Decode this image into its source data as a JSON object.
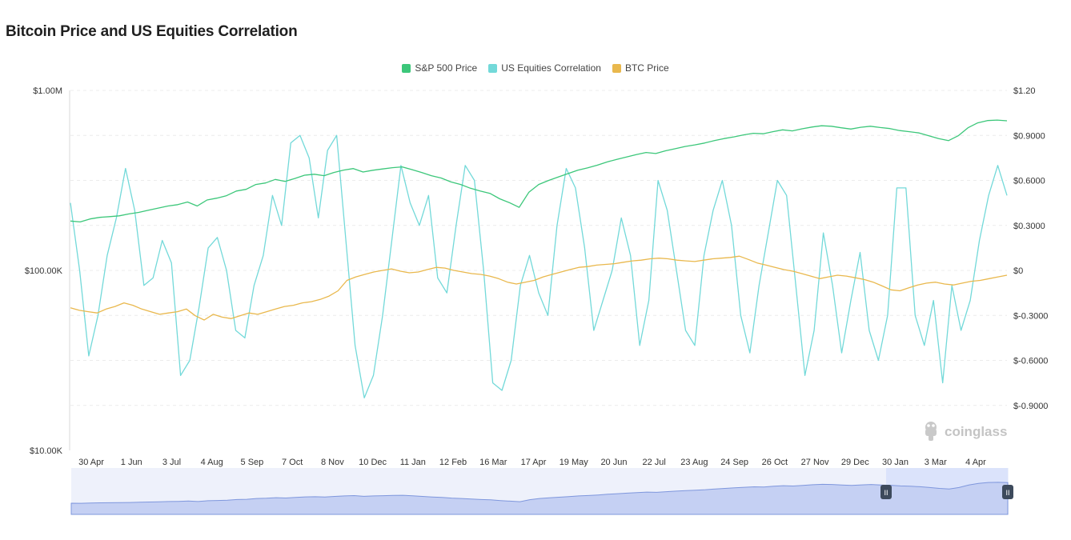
{
  "title": "Bitcoin Price and US Equities Correlation",
  "legend": [
    {
      "label": "S&P 500 Price",
      "color": "#3cc77a"
    },
    {
      "label": "US Equities Correlation",
      "color": "#73d9d9"
    },
    {
      "label": "BTC Price",
      "color": "#e9b84d"
    }
  ],
  "watermark": "coinglass",
  "chart_data": {
    "type": "line",
    "title": "Bitcoin Price and US Equities Correlation",
    "x_ticks": [
      "30 Apr",
      "1 Jun",
      "3 Jul",
      "4 Aug",
      "5 Sep",
      "7 Oct",
      "8 Nov",
      "10 Dec",
      "11 Jan",
      "12 Feb",
      "16 Mar",
      "17 Apr",
      "19 May",
      "20 Jun",
      "22 Jul",
      "23 Aug",
      "24 Sep",
      "26 Oct",
      "27 Nov",
      "29 Dec",
      "30 Jan",
      "3 Mar",
      "4 Apr"
    ],
    "y_left": {
      "scale": "log",
      "ticks": [
        "$10.00K",
        "$100.00K",
        "$1.00M"
      ],
      "range": [
        10000,
        1000000
      ]
    },
    "y_right": {
      "scale": "linear",
      "ticks": [
        "$1.20",
        "$0.9000",
        "$0.6000",
        "$0.3000",
        "$0",
        "$-0.3000",
        "$-0.6000",
        "$-0.9000"
      ],
      "range": [
        -1.2,
        1.2
      ]
    },
    "series": [
      {
        "name": "S&P 500 Price",
        "color": "#3cc77a",
        "axis": "left",
        "values": [
          188000,
          186000,
          193000,
          197000,
          199000,
          201000,
          206000,
          210000,
          216000,
          222000,
          228000,
          232000,
          240000,
          228000,
          246000,
          252000,
          260000,
          276000,
          282000,
          300000,
          306000,
          320000,
          312000,
          324000,
          338000,
          342000,
          336000,
          350000,
          361000,
          368000,
          352000,
          360000,
          366000,
          372000,
          376000,
          363000,
          350000,
          336000,
          326000,
          310000,
          300000,
          286000,
          276000,
          268000,
          250000,
          238000,
          224000,
          272000,
          300000,
          316000,
          330000,
          345000,
          360000,
          371000,
          384000,
          400000,
          414000,
          427000,
          440000,
          452000,
          446000,
          462000,
          474000,
          488000,
          498000,
          510000,
          526000,
          540000,
          552000,
          566000,
          578000,
          574000,
          590000,
          604000,
          596000,
          612000,
          626000,
          636000,
          632000,
          620000,
          610000,
          624000,
          632000,
          622000,
          614000,
          598000,
          590000,
          580000,
          560000,
          540000,
          526000,
          560000,
          620000,
          660000,
          680000,
          684000,
          678000
        ]
      },
      {
        "name": "US Equities Correlation",
        "color": "#73d9d9",
        "axis": "right",
        "values": [
          0.45,
          0.0,
          -0.57,
          -0.3,
          0.1,
          0.35,
          0.68,
          0.4,
          -0.1,
          -0.05,
          0.2,
          0.05,
          -0.7,
          -0.6,
          -0.25,
          0.15,
          0.22,
          0.0,
          -0.4,
          -0.45,
          -0.1,
          0.1,
          0.5,
          0.3,
          0.85,
          0.9,
          0.75,
          0.35,
          0.8,
          0.9,
          0.2,
          -0.5,
          -0.85,
          -0.7,
          -0.3,
          0.2,
          0.7,
          0.45,
          0.3,
          0.5,
          -0.05,
          -0.15,
          0.3,
          0.7,
          0.6,
          0.0,
          -0.75,
          -0.8,
          -0.6,
          -0.1,
          0.1,
          -0.15,
          -0.3,
          0.3,
          0.68,
          0.55,
          0.15,
          -0.4,
          -0.2,
          0.0,
          0.35,
          0.1,
          -0.5,
          -0.2,
          0.6,
          0.4,
          0.0,
          -0.4,
          -0.5,
          0.1,
          0.4,
          0.6,
          0.3,
          -0.3,
          -0.55,
          -0.1,
          0.25,
          0.6,
          0.5,
          -0.1,
          -0.7,
          -0.4,
          0.25,
          -0.1,
          -0.55,
          -0.2,
          0.12,
          -0.4,
          -0.6,
          -0.3,
          0.55,
          0.55,
          -0.3,
          -0.5,
          -0.2,
          -0.75,
          -0.1,
          -0.4,
          -0.2,
          0.2,
          0.5,
          0.7,
          0.5
        ]
      },
      {
        "name": "BTC Price",
        "color": "#e9b84d",
        "axis": "right_scaled_log",
        "values": [
          62000,
          60000,
          59000,
          58000,
          61000,
          63000,
          66000,
          64000,
          61000,
          59000,
          57000,
          58000,
          59000,
          61000,
          56000,
          53000,
          57000,
          55000,
          54000,
          56000,
          58000,
          57000,
          59000,
          61000,
          63000,
          64000,
          66000,
          67000,
          69000,
          72000,
          77000,
          88000,
          92000,
          95000,
          98000,
          100000,
          102000,
          99000,
          97000,
          98000,
          101000,
          104000,
          103000,
          100000,
          98000,
          96000,
          95000,
          93000,
          90000,
          86000,
          84000,
          86000,
          88000,
          92000,
          95000,
          98000,
          101000,
          104000,
          105000,
          107000,
          108000,
          109000,
          111000,
          113000,
          114000,
          116000,
          117000,
          116000,
          114000,
          113000,
          112000,
          114000,
          116000,
          117000,
          118000,
          120000,
          115000,
          110000,
          107000,
          104000,
          101000,
          99000,
          96000,
          93000,
          90000,
          92000,
          94000,
          93000,
          91000,
          89000,
          86000,
          82000,
          78000,
          77000,
          80000,
          83000,
          85000,
          86000,
          84000,
          83000,
          85000,
          87000,
          88000,
          90000,
          92000,
          94000
        ]
      }
    ]
  },
  "navigator": {
    "left_handle": "II",
    "right_handle": "II"
  }
}
